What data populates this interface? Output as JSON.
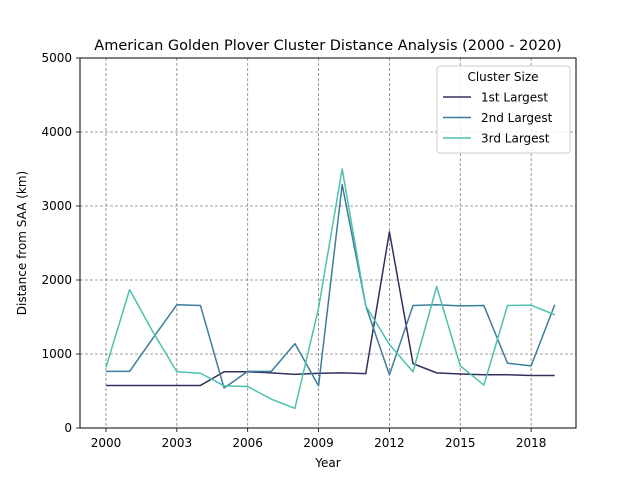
{
  "chart_data": {
    "type": "line",
    "title": "American Golden Plover Cluster Distance Analysis (2000 - 2020)",
    "xlabel": "Year",
    "ylabel": "Distance from SAA (km)",
    "xlim": [
      1998.9,
      2019.9
    ],
    "ylim": [
      0,
      5000
    ],
    "xticks": [
      2000,
      2003,
      2006,
      2009,
      2012,
      2015,
      2018
    ],
    "yticks": [
      0,
      1000,
      2000,
      3000,
      4000,
      5000
    ],
    "grid": true,
    "legend": {
      "title": "Cluster Size",
      "position": "top-right"
    },
    "x": [
      2000,
      2001,
      2002,
      2003,
      2004,
      2005,
      2006,
      2007,
      2008,
      2009,
      2010,
      2011,
      2012,
      2013,
      2014,
      2015,
      2016,
      2017,
      2018,
      2019
    ],
    "series": [
      {
        "name": "1st Largest",
        "color": "#35305b",
        "values": [
          575,
          575,
          575,
          575,
          575,
          760,
          760,
          745,
          725,
          740,
          745,
          735,
          2650,
          870,
          745,
          730,
          720,
          720,
          710,
          710
        ]
      },
      {
        "name": "2nd Largest",
        "color": "#3c7d9e",
        "values": [
          765,
          765,
          1220,
          1665,
          1655,
          540,
          765,
          765,
          1140,
          570,
          3290,
          1650,
          720,
          1655,
          1665,
          1650,
          1655,
          875,
          840,
          1665
        ]
      },
      {
        "name": "3rd Largest",
        "color": "#4cc1ad",
        "values": [
          820,
          1870,
          1290,
          760,
          740,
          570,
          560,
          390,
          265,
          1620,
          3500,
          1650,
          1130,
          760,
          1910,
          840,
          580,
          1655,
          1660,
          1530
        ]
      }
    ]
  }
}
